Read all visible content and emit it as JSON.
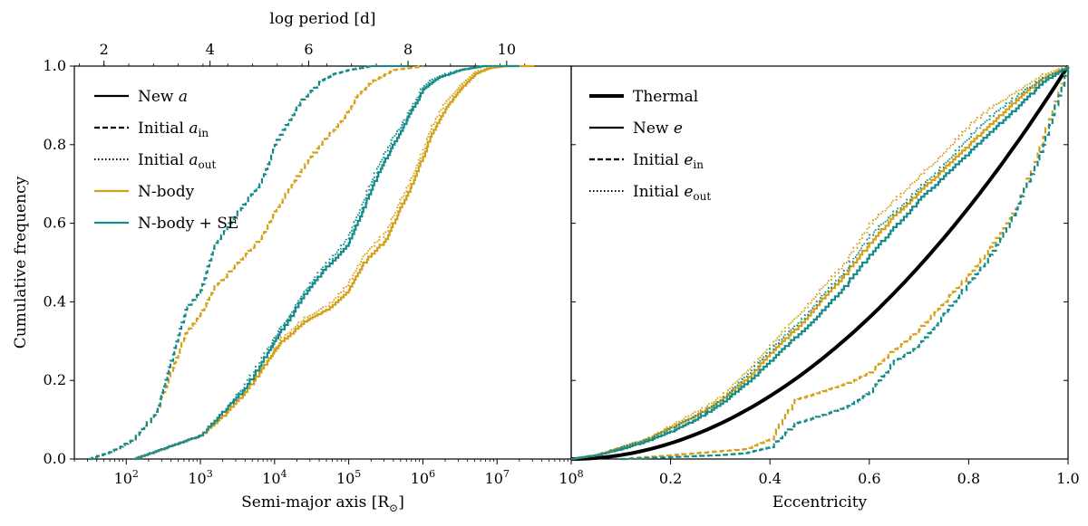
{
  "colors": {
    "nbody": "#D4A017",
    "nbody_se": "#138B8B",
    "black": "#000000"
  },
  "chart_data": [
    {
      "type": "line",
      "panel": "left",
      "title": "",
      "xlabel": "Semi-major axis [R",
      "xlabel_sub": "⊙",
      "xlabel_end": "]",
      "ylabel": "Cumulative frequency",
      "xscale": "log",
      "xlim_log10": [
        1.3,
        8.0
      ],
      "ylim": [
        0,
        1.0
      ],
      "xticks": [
        {
          "log": 2,
          "base": "10",
          "exp": "2"
        },
        {
          "log": 3,
          "base": "10",
          "exp": "3"
        },
        {
          "log": 4,
          "base": "10",
          "exp": "4"
        },
        {
          "log": 5,
          "base": "10",
          "exp": "5"
        },
        {
          "log": 6,
          "base": "10",
          "exp": "6"
        },
        {
          "log": 7,
          "base": "10",
          "exp": "7"
        },
        {
          "log": 8,
          "base": "10",
          "exp": "8"
        }
      ],
      "yticks": [
        "0.0",
        "0.2",
        "0.4",
        "0.6",
        "0.8",
        "1.0"
      ],
      "top_axis": {
        "label": "log period [d]",
        "ticks": [
          {
            "label": "2",
            "at_log_a": 1.7
          },
          {
            "label": "4",
            "at_log_a": 3.13
          },
          {
            "label": "6",
            "at_log_a": 4.46
          },
          {
            "label": "8",
            "at_log_a": 5.8
          },
          {
            "label": "10",
            "at_log_a": 7.13
          }
        ]
      },
      "legend": [
        {
          "label": "New ",
          "italic": "a",
          "sub": "",
          "style": "solid",
          "color": "#000000"
        },
        {
          "label": "Initial ",
          "italic": "a",
          "sub": "in",
          "style": "dashed",
          "color": "#000000"
        },
        {
          "label": "Initial ",
          "italic": "a",
          "sub": "out",
          "style": "dotted",
          "color": "#000000"
        },
        {
          "label": "N-body",
          "italic": "",
          "sub": "",
          "style": "solid",
          "color": "#D4A017"
        },
        {
          "label": "N-body + SE",
          "italic": "",
          "sub": "",
          "style": "solid",
          "color": "#138B8B"
        }
      ],
      "series": [
        {
          "name": "N-body New a",
          "color": "#D4A017",
          "style": "solid",
          "x_log": [
            2.1,
            2.4,
            2.7,
            3.0,
            3.3,
            3.6,
            3.9,
            4.1,
            4.4,
            4.7,
            5.0,
            5.2,
            5.5,
            5.7,
            5.9,
            6.1,
            6.3,
            6.5,
            6.7,
            6.9,
            7.1,
            7.5
          ],
          "y": [
            0.0,
            0.02,
            0.04,
            0.06,
            0.11,
            0.17,
            0.25,
            0.3,
            0.35,
            0.38,
            0.43,
            0.5,
            0.56,
            0.64,
            0.72,
            0.82,
            0.89,
            0.94,
            0.98,
            0.995,
            1.0,
            1.0
          ]
        },
        {
          "name": "N-body + SE New a",
          "color": "#138B8B",
          "style": "solid",
          "x_log": [
            2.1,
            2.4,
            2.7,
            3.0,
            3.3,
            3.6,
            3.9,
            4.1,
            4.4,
            4.7,
            5.0,
            5.2,
            5.4,
            5.6,
            5.8,
            6.0,
            6.2,
            6.5,
            6.8,
            7.0,
            7.3
          ],
          "y": [
            0.0,
            0.02,
            0.04,
            0.06,
            0.12,
            0.18,
            0.27,
            0.33,
            0.42,
            0.49,
            0.55,
            0.64,
            0.73,
            0.8,
            0.87,
            0.94,
            0.97,
            0.99,
            1.0,
            1.0,
            1.0
          ]
        },
        {
          "name": "N-body Initial a_in",
          "color": "#D4A017",
          "style": "dashed",
          "x_log": [
            1.5,
            1.8,
            2.1,
            2.4,
            2.6,
            2.8,
            3.0,
            3.2,
            3.5,
            3.8,
            4.0,
            4.3,
            4.6,
            4.9,
            5.1,
            5.3,
            5.6,
            6.0
          ],
          "y": [
            0.0,
            0.02,
            0.05,
            0.12,
            0.22,
            0.32,
            0.37,
            0.44,
            0.5,
            0.56,
            0.63,
            0.72,
            0.8,
            0.86,
            0.92,
            0.96,
            0.99,
            1.0
          ]
        },
        {
          "name": "N-body + SE Initial a_in",
          "color": "#138B8B",
          "style": "dashed",
          "x_log": [
            1.5,
            1.8,
            2.1,
            2.4,
            2.6,
            2.8,
            3.0,
            3.2,
            3.5,
            3.8,
            4.0,
            4.3,
            4.6,
            4.8,
            5.0,
            5.3,
            5.8
          ],
          "y": [
            0.0,
            0.02,
            0.05,
            0.12,
            0.25,
            0.38,
            0.43,
            0.55,
            0.63,
            0.7,
            0.8,
            0.9,
            0.96,
            0.98,
            0.99,
            1.0,
            1.0
          ]
        },
        {
          "name": "N-body Initial a_out",
          "color": "#D4A017",
          "style": "dotted",
          "x_log": [
            2.1,
            2.4,
            2.7,
            3.0,
            3.3,
            3.6,
            3.9,
            4.1,
            4.4,
            4.7,
            5.0,
            5.2,
            5.5,
            5.7,
            5.9,
            6.1,
            6.3,
            6.5,
            6.7,
            6.9,
            7.1,
            7.5
          ],
          "y": [
            0.0,
            0.02,
            0.04,
            0.06,
            0.11,
            0.17,
            0.25,
            0.31,
            0.36,
            0.39,
            0.45,
            0.52,
            0.58,
            0.66,
            0.74,
            0.84,
            0.91,
            0.95,
            0.985,
            0.998,
            1.0,
            1.0
          ]
        },
        {
          "name": "N-body + SE Initial a_out",
          "color": "#138B8B",
          "style": "dotted",
          "x_log": [
            2.1,
            2.4,
            2.7,
            3.0,
            3.3,
            3.6,
            3.9,
            4.1,
            4.4,
            4.7,
            5.0,
            5.2,
            5.4,
            5.6,
            5.8,
            6.0,
            6.2,
            6.5,
            6.8,
            7.0,
            7.3
          ],
          "y": [
            0.0,
            0.02,
            0.04,
            0.06,
            0.12,
            0.19,
            0.28,
            0.34,
            0.43,
            0.5,
            0.57,
            0.66,
            0.75,
            0.82,
            0.88,
            0.95,
            0.975,
            0.99,
            1.0,
            1.0,
            1.0
          ]
        }
      ]
    },
    {
      "type": "line",
      "panel": "right",
      "title": "",
      "xlabel": "Eccentricity",
      "ylabel": "",
      "xlim": [
        0,
        1.0
      ],
      "ylim": [
        0,
        1.0
      ],
      "xticks": [
        "0.2",
        "0.4",
        "0.6",
        "0.8",
        "1.0"
      ],
      "legend": [
        {
          "label": "Thermal",
          "italic": "",
          "sub": "",
          "style": "thick",
          "color": "#000000"
        },
        {
          "label": "New ",
          "italic": "e",
          "sub": "",
          "style": "solid",
          "color": "#000000"
        },
        {
          "label": "Initial ",
          "italic": "e",
          "sub": "in",
          "style": "dashed",
          "color": "#000000"
        },
        {
          "label": "Initial ",
          "italic": "e",
          "sub": "out",
          "style": "dotted",
          "color": "#000000"
        }
      ],
      "series": [
        {
          "name": "Thermal",
          "color": "#000000",
          "style": "thick",
          "function": "e^2"
        },
        {
          "name": "N-body New e",
          "color": "#D4A017",
          "style": "solid",
          "x": [
            0.0,
            0.05,
            0.1,
            0.15,
            0.2,
            0.25,
            0.3,
            0.35,
            0.4,
            0.45,
            0.5,
            0.55,
            0.6,
            0.65,
            0.7,
            0.75,
            0.8,
            0.85,
            0.9,
            0.95,
            1.0
          ],
          "y": [
            0.0,
            0.01,
            0.03,
            0.05,
            0.08,
            0.11,
            0.15,
            0.2,
            0.27,
            0.33,
            0.4,
            0.47,
            0.55,
            0.62,
            0.68,
            0.74,
            0.8,
            0.86,
            0.92,
            0.97,
            1.0
          ]
        },
        {
          "name": "N-body + SE New e",
          "color": "#138B8B",
          "style": "solid",
          "x": [
            0.0,
            0.05,
            0.1,
            0.15,
            0.2,
            0.25,
            0.3,
            0.35,
            0.4,
            0.45,
            0.5,
            0.55,
            0.6,
            0.65,
            0.7,
            0.75,
            0.8,
            0.85,
            0.9,
            0.95,
            1.0
          ],
          "y": [
            0.0,
            0.01,
            0.025,
            0.045,
            0.07,
            0.1,
            0.14,
            0.19,
            0.25,
            0.31,
            0.37,
            0.44,
            0.52,
            0.59,
            0.66,
            0.72,
            0.78,
            0.84,
            0.9,
            0.96,
            1.0
          ]
        },
        {
          "name": "N-body Initial e_in",
          "color": "#D4A017",
          "style": "dashed",
          "x": [
            0.1,
            0.2,
            0.3,
            0.35,
            0.4,
            0.45,
            0.5,
            0.55,
            0.6,
            0.65,
            0.7,
            0.75,
            0.8,
            0.85,
            0.9,
            0.95,
            1.0
          ],
          "y": [
            0.0,
            0.01,
            0.02,
            0.025,
            0.05,
            0.15,
            0.17,
            0.19,
            0.22,
            0.28,
            0.33,
            0.4,
            0.47,
            0.55,
            0.65,
            0.82,
            1.0
          ]
        },
        {
          "name": "N-body + SE Initial e_in",
          "color": "#138B8B",
          "style": "dashed",
          "x": [
            0.1,
            0.2,
            0.3,
            0.35,
            0.4,
            0.45,
            0.5,
            0.55,
            0.6,
            0.65,
            0.7,
            0.75,
            0.8,
            0.85,
            0.9,
            0.95,
            1.0
          ],
          "y": [
            0.0,
            0.005,
            0.01,
            0.015,
            0.03,
            0.09,
            0.11,
            0.13,
            0.17,
            0.25,
            0.29,
            0.37,
            0.45,
            0.53,
            0.65,
            0.8,
            1.0
          ]
        },
        {
          "name": "N-body Initial e_out",
          "color": "#D4A017",
          "style": "dotted",
          "x": [
            0.0,
            0.05,
            0.1,
            0.15,
            0.2,
            0.25,
            0.3,
            0.35,
            0.4,
            0.45,
            0.5,
            0.55,
            0.6,
            0.65,
            0.7,
            0.75,
            0.8,
            0.85,
            0.9,
            0.95,
            1.0
          ],
          "y": [
            0.0,
            0.01,
            0.03,
            0.05,
            0.085,
            0.12,
            0.16,
            0.22,
            0.29,
            0.36,
            0.43,
            0.5,
            0.6,
            0.66,
            0.72,
            0.78,
            0.85,
            0.9,
            0.94,
            0.98,
            1.0
          ]
        },
        {
          "name": "N-body + SE Initial e_out",
          "color": "#138B8B",
          "style": "dotted",
          "x": [
            0.0,
            0.05,
            0.1,
            0.15,
            0.2,
            0.25,
            0.3,
            0.35,
            0.4,
            0.45,
            0.5,
            0.55,
            0.6,
            0.65,
            0.7,
            0.75,
            0.8,
            0.85,
            0.9,
            0.95,
            1.0
          ],
          "y": [
            0.0,
            0.01,
            0.03,
            0.05,
            0.08,
            0.11,
            0.15,
            0.21,
            0.28,
            0.34,
            0.41,
            0.48,
            0.57,
            0.63,
            0.69,
            0.75,
            0.82,
            0.88,
            0.93,
            0.97,
            1.0
          ]
        }
      ]
    }
  ]
}
